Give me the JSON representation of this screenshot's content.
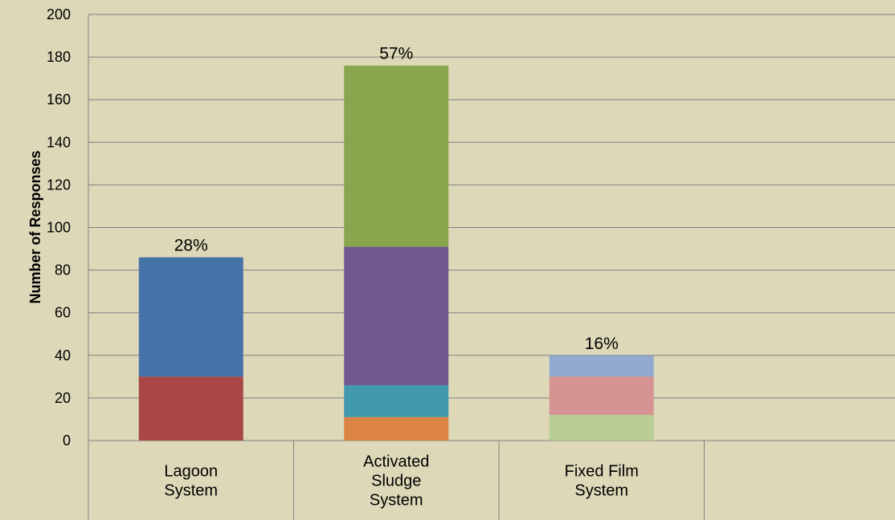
{
  "chart_data": {
    "type": "bar",
    "stacked": true,
    "title": "",
    "xlabel": "",
    "ylabel": "Number of Responses",
    "ylim": [
      0,
      200
    ],
    "yticks": [
      0,
      20,
      40,
      60,
      80,
      100,
      120,
      140,
      160,
      180,
      200
    ],
    "grid": true,
    "categories": [
      "Lagoon System",
      "Activated Sludge System",
      "Fixed Film System"
    ],
    "category_label_lines": [
      [
        "Lagoon",
        "System"
      ],
      [
        "Activated",
        "Sludge",
        "System"
      ],
      [
        "Fixed Film",
        "System"
      ]
    ],
    "bars": [
      {
        "category": "Lagoon System",
        "total_label": "28%",
        "segments": [
          {
            "value": 30,
            "color": "#a84745"
          },
          {
            "value": 56,
            "color": "#4573a7"
          }
        ]
      },
      {
        "category": "Activated Sludge System",
        "total_label": "57%",
        "segments": [
          {
            "value": 11,
            "color": "#db8443"
          },
          {
            "value": 15,
            "color": "#4198af"
          },
          {
            "value": 65,
            "color": "#71588f"
          },
          {
            "value": 85,
            "color": "#89a54e"
          }
        ]
      },
      {
        "category": "Fixed Film System",
        "total_label": "16%",
        "segments": [
          {
            "value": 12,
            "color": "#b9cd96"
          },
          {
            "value": 18,
            "color": "#d59392"
          },
          {
            "value": 10,
            "color": "#93a9cf"
          }
        ]
      }
    ],
    "colors": {
      "background": "#ddd8b8",
      "gridline": "#808080"
    }
  }
}
